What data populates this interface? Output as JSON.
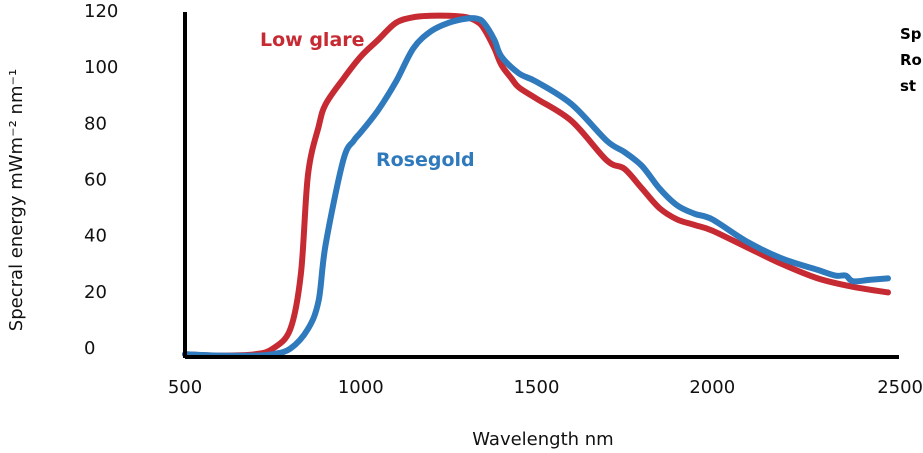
{
  "chart_data": {
    "type": "line",
    "xlabel": "Wavelength nm",
    "ylabel": "Specral energy mWm⁻² nm⁻¹",
    "xlim": [
      500,
      2500
    ],
    "ylim": [
      0,
      120
    ],
    "x_ticks": [
      "500",
      "1000",
      "1500",
      "2000",
      "2500"
    ],
    "y_ticks": [
      "0",
      "20",
      "40",
      "60",
      "80",
      "100",
      "120"
    ],
    "grid": false,
    "annotation_lines": [
      "Sp",
      "Ro",
      "st"
    ],
    "series": [
      {
        "name": "Low glare",
        "color": "#c62a32",
        "x": [
          500,
          600,
          700,
          750,
          800,
          830,
          850,
          880,
          900,
          950,
          1000,
          1050,
          1100,
          1150,
          1200,
          1250,
          1300,
          1330,
          1350,
          1380,
          1400,
          1430,
          1450,
          1500,
          1600,
          1700,
          1750,
          1800,
          1850,
          1900,
          1950,
          2000,
          2100,
          2200,
          2300,
          2400,
          2500
        ],
        "y": [
          1,
          0.5,
          1,
          3,
          10,
          30,
          65,
          82,
          90,
          99,
          107,
          113,
          119,
          121,
          121.5,
          121.5,
          121,
          119.5,
          117,
          110,
          104,
          99,
          96,
          92,
          84,
          70,
          67,
          60,
          53,
          49,
          47,
          45,
          39,
          33,
          28,
          25,
          23
        ]
      },
      {
        "name": "Rosegold",
        "color": "#2f79bd",
        "x": [
          500,
          600,
          700,
          750,
          800,
          850,
          880,
          900,
          950,
          980,
          1000,
          1050,
          1100,
          1150,
          1200,
          1250,
          1300,
          1330,
          1350,
          1380,
          1400,
          1450,
          1500,
          1600,
          1700,
          1750,
          1800,
          1850,
          1900,
          1950,
          2000,
          2100,
          2200,
          2300,
          2350,
          2380,
          2400,
          2450,
          2500
        ],
        "y": [
          1,
          0.5,
          0.5,
          1,
          3,
          10,
          20,
          40,
          70,
          77,
          80,
          88,
          98,
          110,
          116,
          119,
          120.5,
          120.5,
          119,
          113,
          107,
          101,
          98,
          90,
          77,
          73,
          68,
          60,
          54,
          51,
          49,
          41,
          35,
          31,
          29,
          29,
          27,
          27.5,
          28
        ]
      }
    ]
  }
}
